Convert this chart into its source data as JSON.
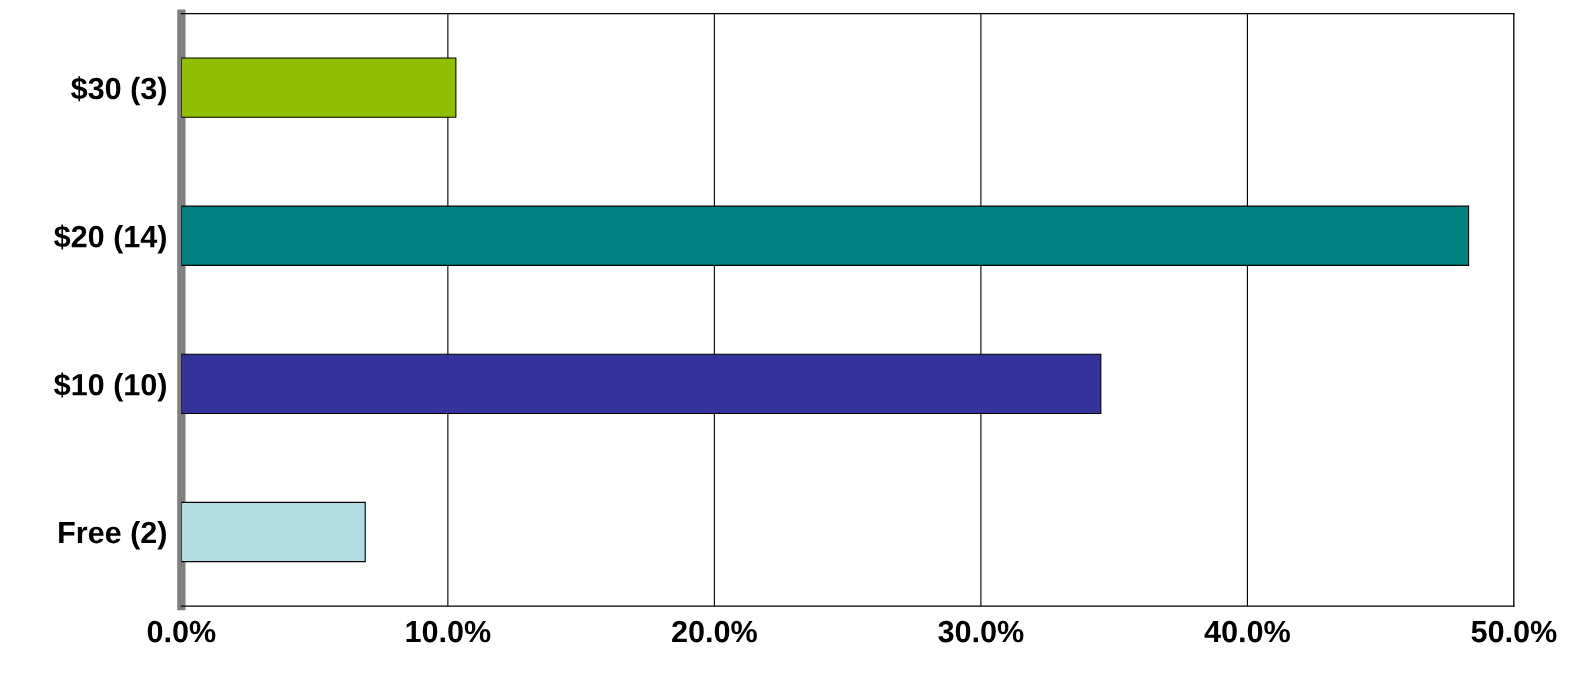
{
  "chart_data": {
    "type": "bar",
    "orientation": "horizontal",
    "categories": [
      "$30 (3)",
      "$20 (14)",
      "$10 (10)",
      "Free (2)"
    ],
    "values": [
      10.3,
      48.3,
      34.5,
      6.9
    ],
    "colors": [
      "#8fbf00",
      "#008080",
      "#333399",
      "#b3dde0"
    ],
    "xlim": [
      0,
      50
    ],
    "xticks": [
      {
        "value": 0,
        "label": "0.0%"
      },
      {
        "value": 10,
        "label": "10.0%"
      },
      {
        "value": 20,
        "label": "20.0%"
      },
      {
        "value": 30,
        "label": "30.0%"
      },
      {
        "value": 40,
        "label": "40.0%"
      },
      {
        "value": 50,
        "label": "50.0%"
      }
    ],
    "grid": "x",
    "legend": false
  }
}
